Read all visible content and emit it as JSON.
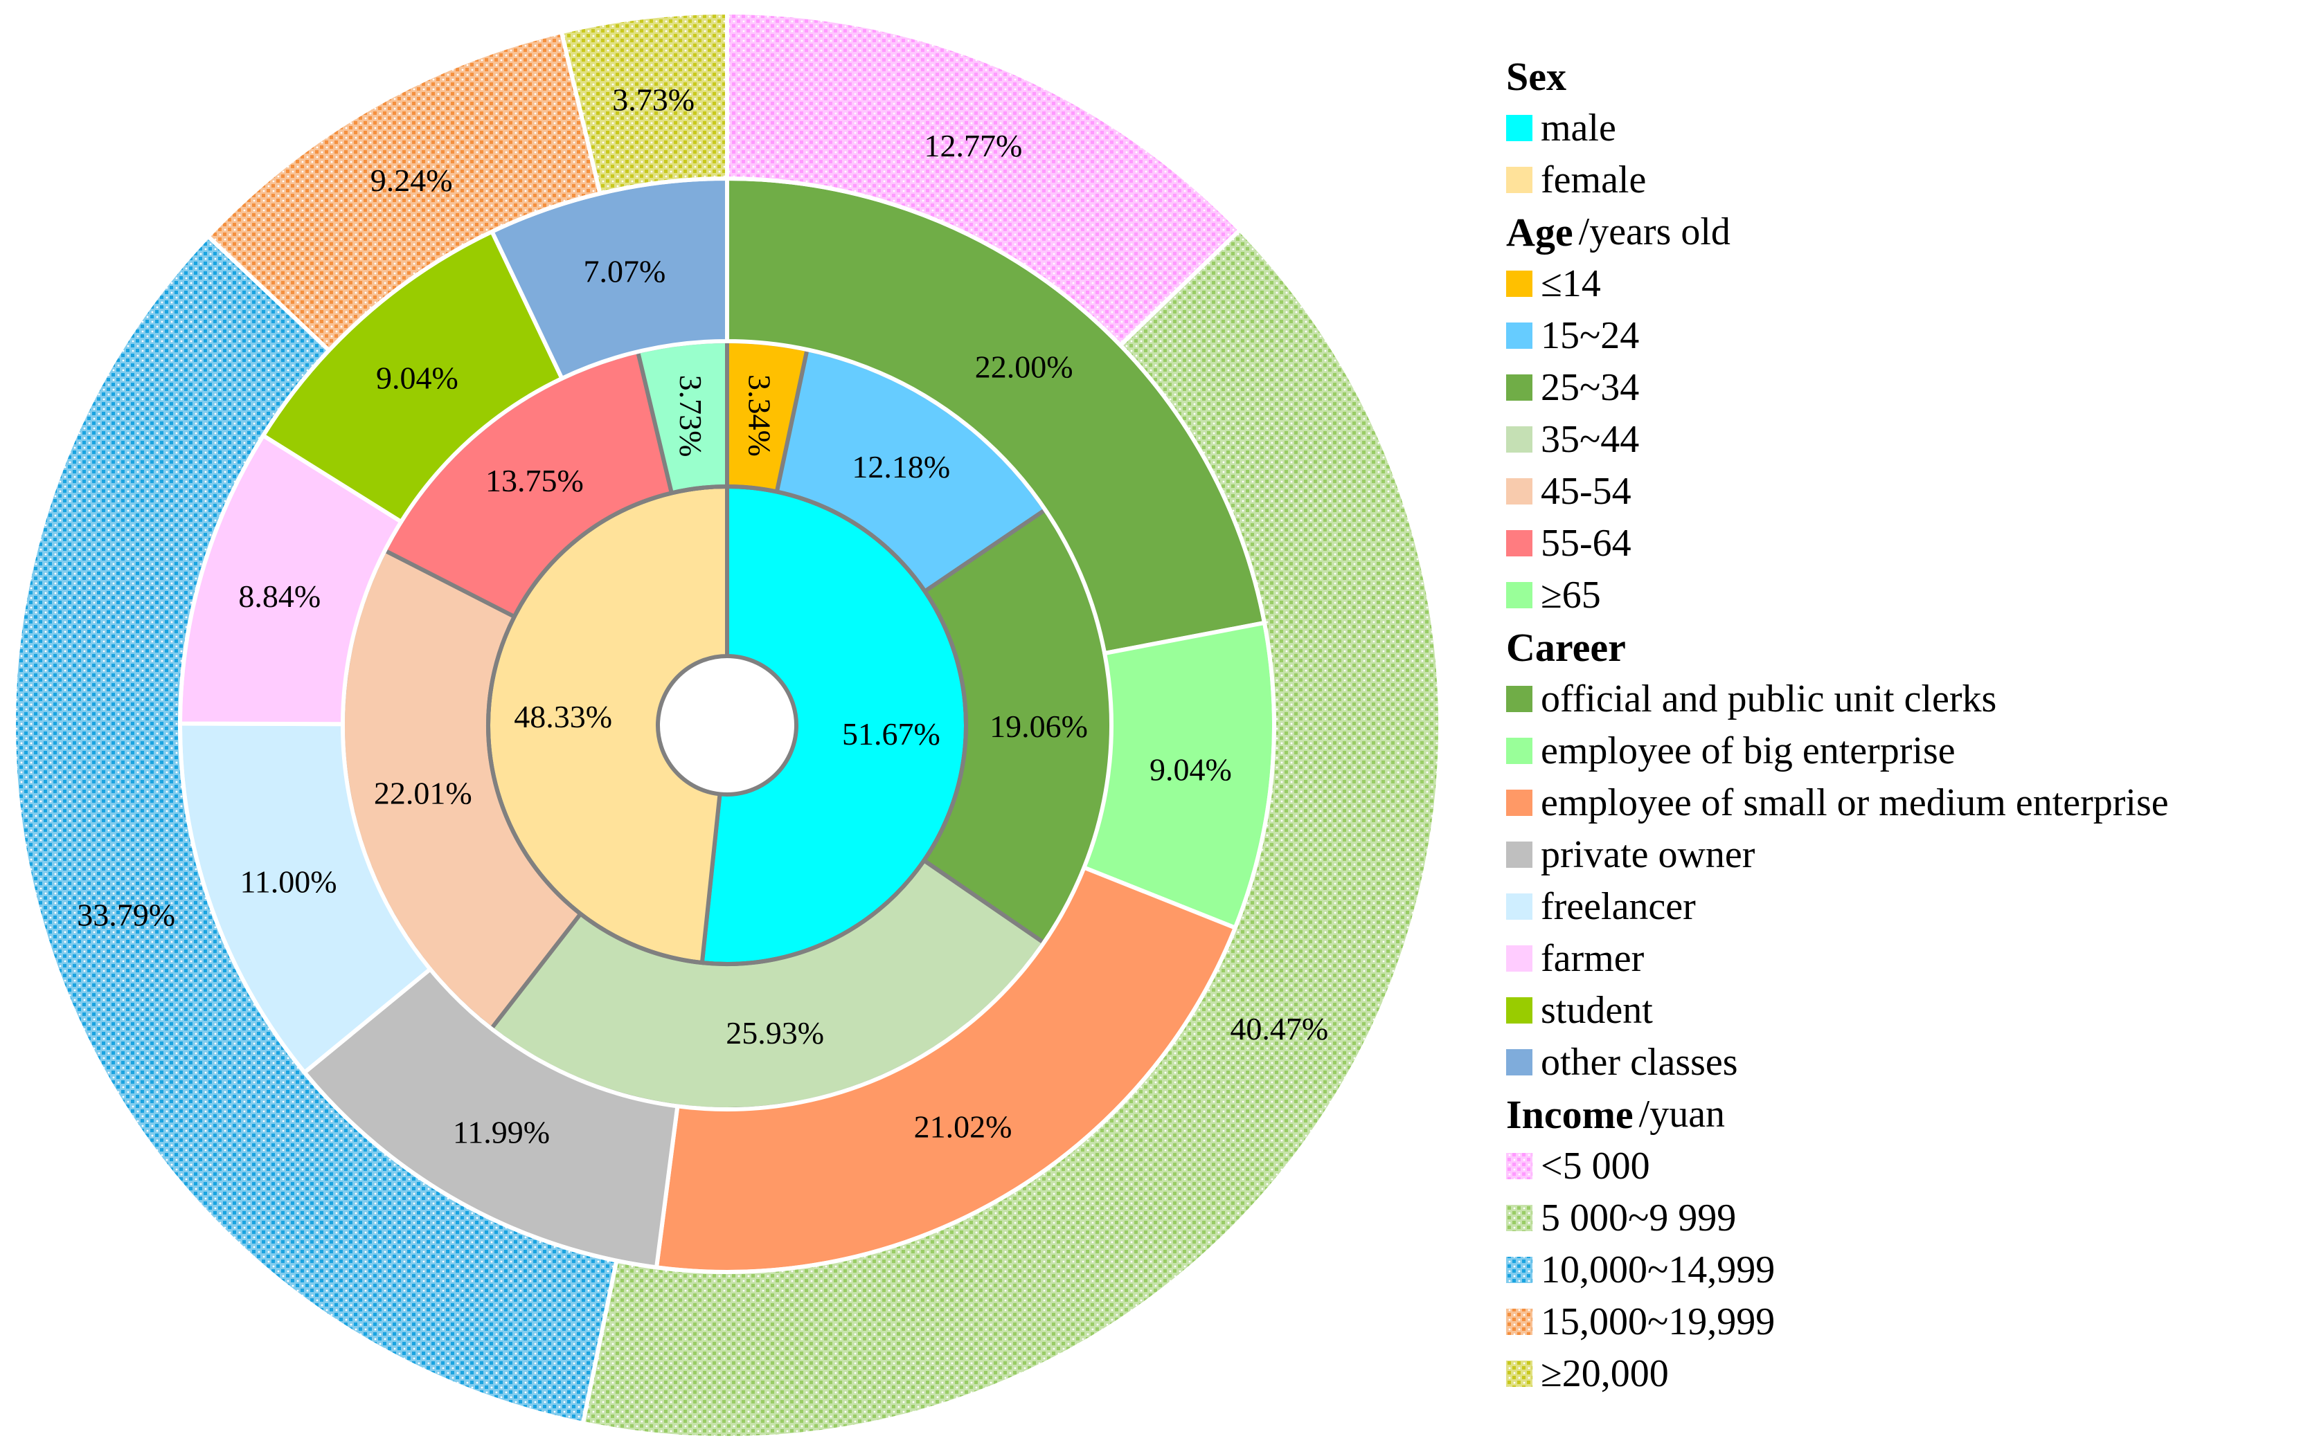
{
  "chart_data": {
    "type": "pie",
    "variant": "nested-donut",
    "rings": [
      {
        "name": "Sex",
        "unit": "",
        "slices": [
          {
            "label": "male",
            "value": 51.67,
            "display": "51.67%",
            "color": "#00ffff"
          },
          {
            "label": "female",
            "value": 48.33,
            "display": "48.33%",
            "color": "#ffe29a"
          }
        ]
      },
      {
        "name": "Age",
        "unit": "/years old",
        "slices": [
          {
            "label": "≤14",
            "value": 3.34,
            "display": "3.34%",
            "color": "#ffc000"
          },
          {
            "label": "15~24",
            "value": 12.18,
            "display": "12.18%",
            "color": "#66ccff"
          },
          {
            "label": "25~34",
            "value": 19.06,
            "display": "19.06%",
            "color": "#70ad47"
          },
          {
            "label": "35~44",
            "value": 25.93,
            "display": "25.93%",
            "color": "#c5e0b4"
          },
          {
            "label": "45-54",
            "value": 22.01,
            "display": "22.01%",
            "color": "#f8cbad"
          },
          {
            "label": "55-64",
            "value": 13.75,
            "display": "13.75%",
            "color": "#ff7c80"
          },
          {
            "label": "≥65",
            "value": 3.73,
            "display": "3.73%",
            "color": "#99ffcc",
            "legend_color": "#99ff99"
          }
        ]
      },
      {
        "name": "Career",
        "unit": "",
        "slices": [
          {
            "label": "official and public unit clerks",
            "value": 22.0,
            "display": "22.00%",
            "color": "#70ad47"
          },
          {
            "label": "employee of big enterprise",
            "value": 9.04,
            "display": "9.04%",
            "color": "#99ff99"
          },
          {
            "label": "employee of small or medium enterprise",
            "value": 21.02,
            "display": "21.02%",
            "color": "#ff9966"
          },
          {
            "label": "private owner",
            "value": 11.99,
            "display": "11.99%",
            "color": "#bfbfbf"
          },
          {
            "label": "freelancer",
            "value": 11.0,
            "display": "11.00%",
            "color": "#cfeeff"
          },
          {
            "label": "farmer",
            "value": 8.84,
            "display": "8.84%",
            "color": "#ffccff"
          },
          {
            "label": "student",
            "value": 9.04,
            "display": "9.04%",
            "color": "#99cc00"
          },
          {
            "label": "other classes",
            "value": 7.07,
            "display": "7.07%",
            "color": "#7facdb"
          }
        ]
      },
      {
        "name": "Income",
        "unit": "/yuan",
        "patterned": true,
        "slices": [
          {
            "label": "<5 000",
            "value": 12.77,
            "display": "12.77%",
            "color": "#ff99ff"
          },
          {
            "label": "5 000~9 999",
            "value": 40.47,
            "display": "40.47%",
            "color": "#99cc66"
          },
          {
            "label": "10,000~14,999",
            "value": 33.79,
            "display": "33.79%",
            "color": "#1aa3e0"
          },
          {
            "label": "15,000~19,999",
            "value": 9.24,
            "display": "9.24%",
            "color": "#f4903f"
          },
          {
            "label": "≥20,000",
            "value": 3.73,
            "display": "3.73%",
            "color": "#c8c81e"
          }
        ]
      }
    ]
  }
}
